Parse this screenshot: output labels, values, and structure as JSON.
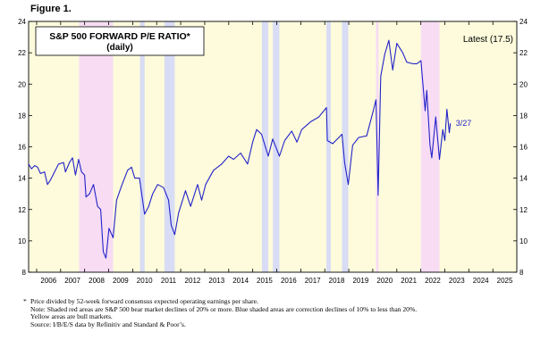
{
  "figure_label": "Figure 1.",
  "colors": {
    "series": "#2323c8",
    "bull": "#fdfbdc",
    "bear": "#f7dcf4",
    "correction": "#d8dcf4",
    "annotation": "#2323c8"
  },
  "chart_data": {
    "type": "line",
    "title": "S&P 500 FORWARD P/E RATIO*",
    "subtitle": "(daily)",
    "latest_label": "Latest (17.5)",
    "date_label": "3/27",
    "x_ticks": [
      "2006",
      "2007",
      "2008",
      "2009",
      "2010",
      "2011",
      "2012",
      "2013",
      "2014",
      "2015",
      "2016",
      "2017",
      "2018",
      "2019",
      "2020",
      "2021",
      "2022",
      "2023",
      "2024",
      "2025"
    ],
    "xlim": [
      "2005-09-01",
      "2025-12-31"
    ],
    "y_ticks": [
      8,
      10,
      12,
      14,
      16,
      18,
      20,
      22,
      24
    ],
    "ylim": [
      8,
      24
    ],
    "grid": false,
    "regime_shading": [
      {
        "kind": "bear",
        "start": "2007-10-09",
        "end": "2009-03-09"
      },
      {
        "kind": "correction",
        "start": "2010-04-23",
        "end": "2010-07-02"
      },
      {
        "kind": "correction",
        "start": "2011-04-29",
        "end": "2011-10-03"
      },
      {
        "kind": "correction",
        "start": "2015-05-21",
        "end": "2015-08-25"
      },
      {
        "kind": "correction",
        "start": "2015-11-03",
        "end": "2016-02-11"
      },
      {
        "kind": "correction",
        "start": "2018-01-26",
        "end": "2018-04-02"
      },
      {
        "kind": "correction",
        "start": "2018-09-20",
        "end": "2018-12-24"
      },
      {
        "kind": "bear",
        "start": "2020-02-19",
        "end": "2020-03-23"
      },
      {
        "kind": "bear",
        "start": "2022-01-03",
        "end": "2022-10-12"
      }
    ],
    "series": [
      {
        "values": [
          {
            "x": "2005-09-01",
            "y": 14.9
          },
          {
            "x": "2005-10-15",
            "y": 14.6
          },
          {
            "x": "2005-12-01",
            "y": 14.8
          },
          {
            "x": "2006-01-15",
            "y": 14.7
          },
          {
            "x": "2006-03-01",
            "y": 14.3
          },
          {
            "x": "2006-05-01",
            "y": 14.4
          },
          {
            "x": "2006-06-15",
            "y": 13.6
          },
          {
            "x": "2006-08-01",
            "y": 13.9
          },
          {
            "x": "2006-10-01",
            "y": 14.4
          },
          {
            "x": "2006-12-01",
            "y": 14.9
          },
          {
            "x": "2007-02-15",
            "y": 15.0
          },
          {
            "x": "2007-03-15",
            "y": 14.4
          },
          {
            "x": "2007-05-15",
            "y": 15.0
          },
          {
            "x": "2007-07-01",
            "y": 15.3
          },
          {
            "x": "2007-08-15",
            "y": 14.2
          },
          {
            "x": "2007-10-01",
            "y": 15.2
          },
          {
            "x": "2007-11-15",
            "y": 14.4
          },
          {
            "x": "2008-01-01",
            "y": 14.2
          },
          {
            "x": "2008-01-22",
            "y": 12.8
          },
          {
            "x": "2008-03-15",
            "y": 13.0
          },
          {
            "x": "2008-05-15",
            "y": 13.6
          },
          {
            "x": "2008-07-15",
            "y": 12.2
          },
          {
            "x": "2008-09-01",
            "y": 12.0
          },
          {
            "x": "2008-10-10",
            "y": 9.3
          },
          {
            "x": "2008-11-20",
            "y": 8.9
          },
          {
            "x": "2009-01-06",
            "y": 10.8
          },
          {
            "x": "2009-03-09",
            "y": 10.2
          },
          {
            "x": "2009-05-01",
            "y": 12.6
          },
          {
            "x": "2009-07-15",
            "y": 13.5
          },
          {
            "x": "2009-10-15",
            "y": 14.5
          },
          {
            "x": "2009-12-15",
            "y": 14.7
          },
          {
            "x": "2010-02-01",
            "y": 14.0
          },
          {
            "x": "2010-04-15",
            "y": 14.0
          },
          {
            "x": "2010-07-01",
            "y": 11.7
          },
          {
            "x": "2010-09-01",
            "y": 12.2
          },
          {
            "x": "2010-11-01",
            "y": 13.0
          },
          {
            "x": "2011-01-15",
            "y": 13.6
          },
          {
            "x": "2011-04-15",
            "y": 13.4
          },
          {
            "x": "2011-07-01",
            "y": 12.6
          },
          {
            "x": "2011-08-10",
            "y": 11.0
          },
          {
            "x": "2011-10-03",
            "y": 10.4
          },
          {
            "x": "2011-12-01",
            "y": 11.8
          },
          {
            "x": "2012-03-15",
            "y": 13.2
          },
          {
            "x": "2012-06-01",
            "y": 12.2
          },
          {
            "x": "2012-09-15",
            "y": 13.6
          },
          {
            "x": "2012-11-15",
            "y": 12.6
          },
          {
            "x": "2013-01-15",
            "y": 13.6
          },
          {
            "x": "2013-05-15",
            "y": 14.5
          },
          {
            "x": "2013-09-15",
            "y": 14.9
          },
          {
            "x": "2013-12-31",
            "y": 15.4
          },
          {
            "x": "2014-03-15",
            "y": 15.2
          },
          {
            "x": "2014-07-01",
            "y": 15.6
          },
          {
            "x": "2014-10-15",
            "y": 14.9
          },
          {
            "x": "2014-12-31",
            "y": 16.3
          },
          {
            "x": "2015-03-01",
            "y": 17.1
          },
          {
            "x": "2015-05-15",
            "y": 16.8
          },
          {
            "x": "2015-08-25",
            "y": 15.4
          },
          {
            "x": "2015-11-01",
            "y": 16.5
          },
          {
            "x": "2016-02-11",
            "y": 15.4
          },
          {
            "x": "2016-05-01",
            "y": 16.4
          },
          {
            "x": "2016-08-15",
            "y": 17.0
          },
          {
            "x": "2016-11-04",
            "y": 16.3
          },
          {
            "x": "2017-01-15",
            "y": 17.1
          },
          {
            "x": "2017-06-01",
            "y": 17.6
          },
          {
            "x": "2017-10-01",
            "y": 17.9
          },
          {
            "x": "2018-01-26",
            "y": 18.5
          },
          {
            "x": "2018-02-09",
            "y": 16.4
          },
          {
            "x": "2018-05-01",
            "y": 16.2
          },
          {
            "x": "2018-09-20",
            "y": 16.8
          },
          {
            "x": "2018-10-30",
            "y": 15.0
          },
          {
            "x": "2018-12-24",
            "y": 13.6
          },
          {
            "x": "2019-03-01",
            "y": 16.1
          },
          {
            "x": "2019-06-01",
            "y": 16.6
          },
          {
            "x": "2019-10-01",
            "y": 16.7
          },
          {
            "x": "2020-01-15",
            "y": 18.4
          },
          {
            "x": "2020-02-19",
            "y": 19.0
          },
          {
            "x": "2020-03-23",
            "y": 12.9
          },
          {
            "x": "2020-05-01",
            "y": 20.5
          },
          {
            "x": "2020-07-01",
            "y": 21.9
          },
          {
            "x": "2020-09-02",
            "y": 22.8
          },
          {
            "x": "2020-10-30",
            "y": 20.9
          },
          {
            "x": "2021-01-01",
            "y": 22.6
          },
          {
            "x": "2021-04-01",
            "y": 22.0
          },
          {
            "x": "2021-06-01",
            "y": 21.4
          },
          {
            "x": "2021-09-01",
            "y": 21.3
          },
          {
            "x": "2021-11-01",
            "y": 21.3
          },
          {
            "x": "2022-01-03",
            "y": 21.5
          },
          {
            "x": "2022-03-08",
            "y": 18.3
          },
          {
            "x": "2022-04-01",
            "y": 19.6
          },
          {
            "x": "2022-05-20",
            "y": 16.1
          },
          {
            "x": "2022-06-16",
            "y": 15.3
          },
          {
            "x": "2022-08-16",
            "y": 17.9
          },
          {
            "x": "2022-10-12",
            "y": 15.2
          },
          {
            "x": "2022-12-01",
            "y": 17.1
          },
          {
            "x": "2023-01-01",
            "y": 16.4
          },
          {
            "x": "2023-02-02",
            "y": 18.4
          },
          {
            "x": "2023-03-10",
            "y": 16.9
          },
          {
            "x": "2023-03-27",
            "y": 17.5
          }
        ]
      }
    ]
  },
  "notes": {
    "footnote_mark": "*",
    "line1": "Price divided by 52-week forward consensus expected operating earnings per share.",
    "line2": "Note: Shaded red areas are S&P 500 bear market declines of 20% or more.  Blue shaded areas are correction declines of 10% to less than 20%.",
    "line3": "Yellow areas are bull markets.",
    "source": "Source: I/B/E/S data by Refinitiv and Standard & Poor’s."
  }
}
